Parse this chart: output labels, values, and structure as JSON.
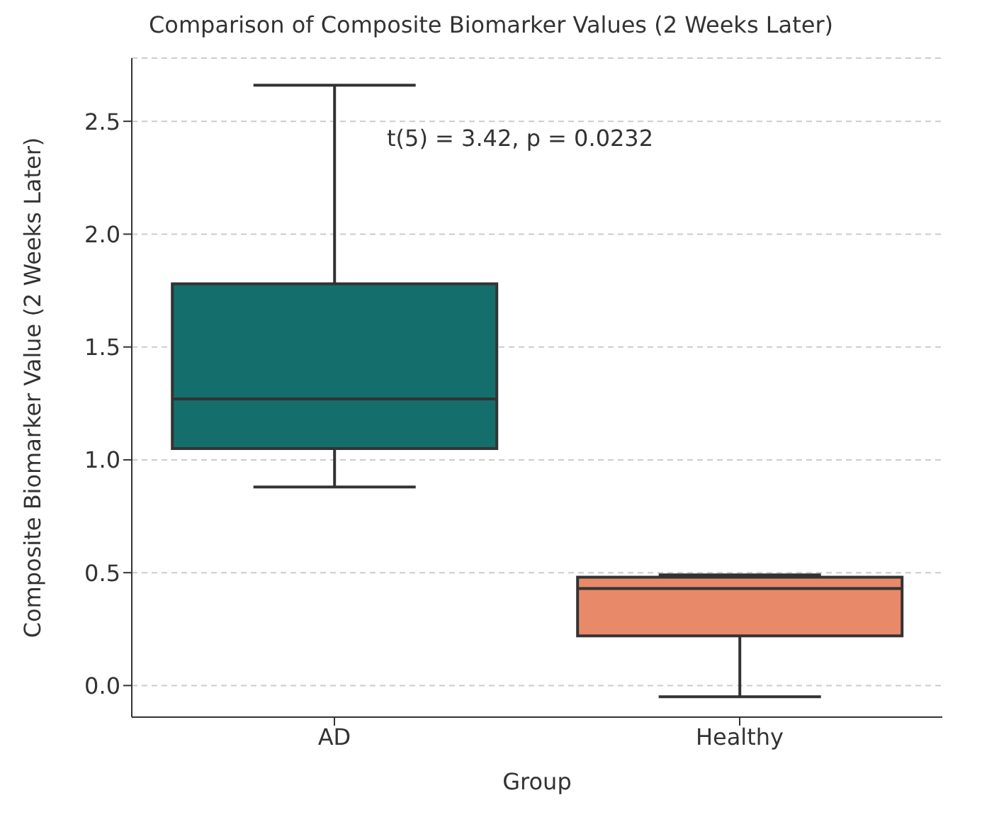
{
  "chart_data": {
    "type": "box",
    "title": "Comparison of Composite Biomarker Values (2 Weeks Later)",
    "xlabel": "Group",
    "ylabel": "Composite Biomarker Value (2 Weeks Later)",
    "categories": [
      "AD",
      "Healthy"
    ],
    "boxes": [
      {
        "low": 0.88,
        "q1": 1.05,
        "median": 1.27,
        "q3": 1.78,
        "high": 2.66
      },
      {
        "low": -0.05,
        "q1": 0.22,
        "median": 0.43,
        "q3": 0.48,
        "high": 0.49
      }
    ],
    "colors": [
      "#146f6c",
      "#e8896a"
    ],
    "ylim": [
      -0.14,
      2.78
    ],
    "yticks": [
      {
        "value": 0,
        "label": "0.0"
      },
      {
        "value": 0.5,
        "label": "0.5"
      },
      {
        "value": 1,
        "label": "1.0"
      },
      {
        "value": 1.5,
        "label": "1.5"
      },
      {
        "value": 2,
        "label": "2.0"
      },
      {
        "value": 2.5,
        "label": "2.5"
      }
    ],
    "grid": "y",
    "annotations": [
      "t(5) = 3.42, p = 0.0232"
    ]
  }
}
